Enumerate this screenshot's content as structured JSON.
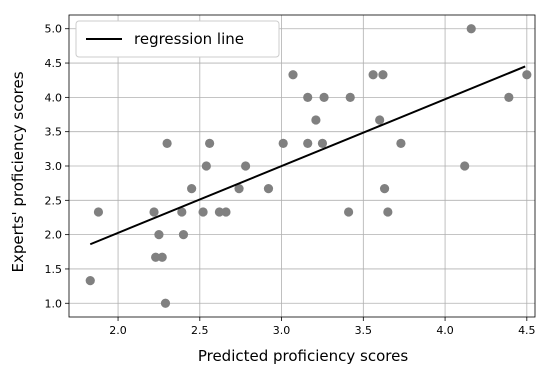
{
  "chart_data": {
    "type": "scatter",
    "title": "",
    "xlabel": "Predicted proficiency scores",
    "ylabel": "Experts' proficiency scores",
    "xlim": [
      1.7,
      4.55
    ],
    "ylim": [
      0.8,
      5.2
    ],
    "xticks": [
      "2.0",
      "2.5",
      "3.0",
      "3.5",
      "4.0",
      "4.5"
    ],
    "yticks": [
      "1.0",
      "1.5",
      "2.0",
      "2.5",
      "3.0",
      "3.5",
      "4.0",
      "4.5",
      "5.0"
    ],
    "grid": true,
    "legend": {
      "placement": "top-left",
      "entries": [
        "regression line"
      ]
    },
    "colors": {
      "points": "#808080",
      "line": "#000000",
      "grid": "#b0b0b0"
    },
    "series": [
      {
        "type": "scatter",
        "points": [
          [
            1.83,
            1.33
          ],
          [
            1.88,
            2.33
          ],
          [
            2.22,
            2.33
          ],
          [
            2.23,
            1.67
          ],
          [
            2.25,
            2.0
          ],
          [
            2.27,
            1.67
          ],
          [
            2.29,
            1.0
          ],
          [
            2.3,
            3.33
          ],
          [
            2.39,
            2.33
          ],
          [
            2.4,
            2.0
          ],
          [
            2.45,
            2.67
          ],
          [
            2.52,
            2.33
          ],
          [
            2.54,
            3.0
          ],
          [
            2.56,
            3.33
          ],
          [
            2.62,
            2.33
          ],
          [
            2.66,
            2.33
          ],
          [
            2.74,
            2.67
          ],
          [
            2.78,
            3.0
          ],
          [
            2.92,
            2.67
          ],
          [
            3.01,
            3.33
          ],
          [
            3.07,
            4.33
          ],
          [
            3.16,
            4.0
          ],
          [
            3.16,
            3.33
          ],
          [
            3.21,
            3.67
          ],
          [
            3.25,
            3.33
          ],
          [
            3.26,
            4.0
          ],
          [
            3.41,
            2.33
          ],
          [
            3.42,
            4.0
          ],
          [
            3.56,
            4.33
          ],
          [
            3.6,
            3.67
          ],
          [
            3.62,
            4.33
          ],
          [
            3.63,
            2.67
          ],
          [
            3.65,
            2.33
          ],
          [
            3.73,
            3.33
          ],
          [
            4.12,
            3.0
          ],
          [
            4.16,
            5.0
          ],
          [
            4.39,
            4.0
          ],
          [
            4.5,
            4.33
          ]
        ]
      },
      {
        "name": "regression line",
        "type": "line",
        "points": [
          [
            1.83,
            1.86
          ],
          [
            4.49,
            4.45
          ]
        ]
      }
    ]
  }
}
